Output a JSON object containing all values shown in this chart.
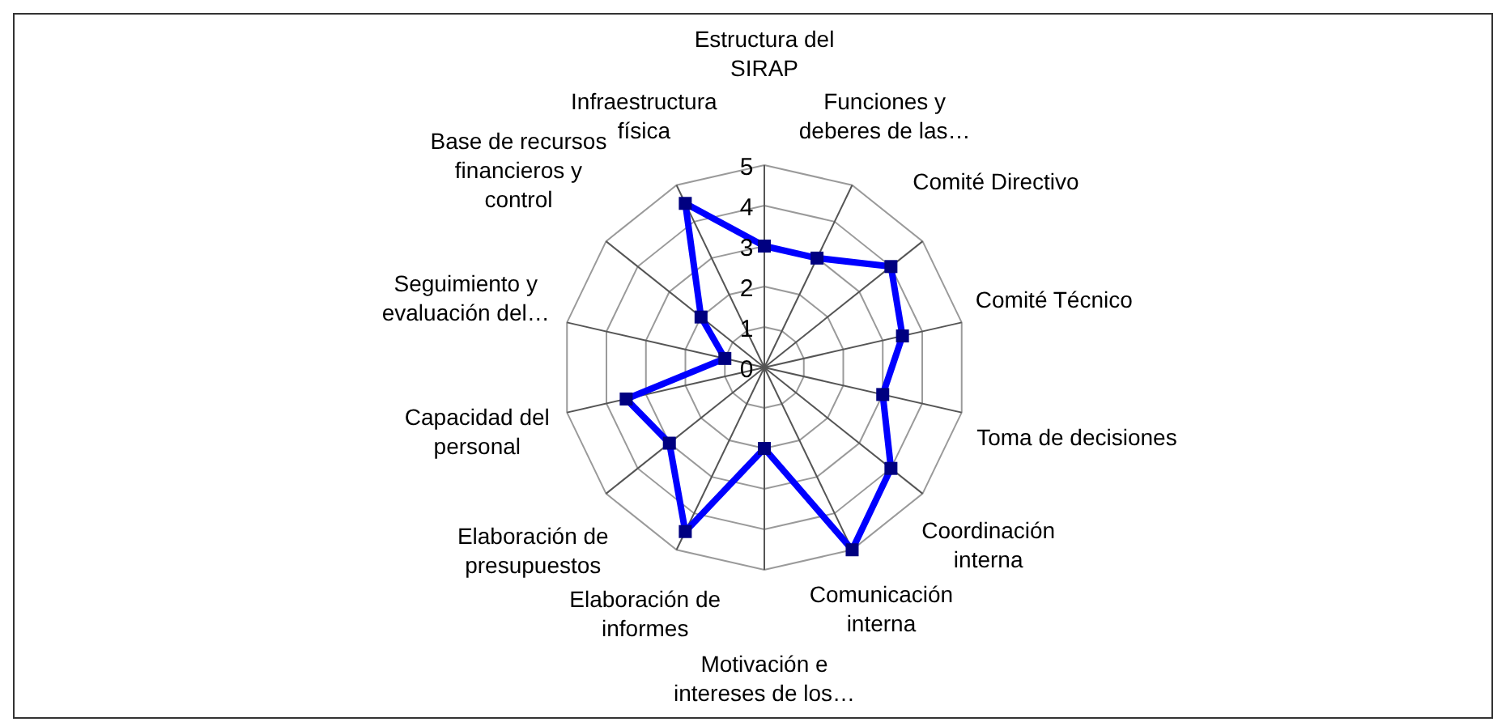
{
  "chart_data": {
    "type": "radar",
    "categories": [
      "Estructura del SIRAP",
      "Funciones y deberes de las…",
      "Comité Directivo",
      "Comité Técnico",
      "Toma de decisiones",
      "Coordinación interna",
      "Comunicación interna",
      "Motivación e intereses de los…",
      "Elaboración de informes",
      "Elaboración de presupuestos",
      "Capacidad del personal",
      "Seguimiento y evaluación del…",
      "Base de recursos financieros y control",
      "Infraestructura física"
    ],
    "series": [
      {
        "color": "#0000ff",
        "values": [
          3,
          3,
          4,
          3.5,
          3,
          4,
          5,
          2,
          4.5,
          3,
          3.5,
          1,
          2,
          4.5
        ]
      }
    ],
    "ylim": [
      0,
      5
    ],
    "yticks": [
      0,
      1,
      2,
      3,
      4,
      5
    ],
    "grid": true,
    "marker": "square"
  }
}
